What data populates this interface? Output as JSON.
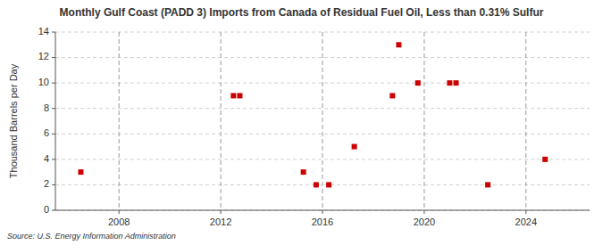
{
  "chart_data": {
    "type": "scatter",
    "title": "Monthly Gulf Coast (PADD 3) Imports from Canada of Residual Fuel Oil, Less than 0.31% Sulfur",
    "ylabel": "Thousand Barrels per Day",
    "source": "Source: U.S. Energy Information Administration",
    "x": [
      2006.5,
      2012.5,
      2012.75,
      2015.25,
      2015.75,
      2016.25,
      2017.25,
      2018.75,
      2019.0,
      2019.75,
      2021.0,
      2021.25,
      2022.5,
      2024.75
    ],
    "values": [
      3,
      9,
      9,
      3,
      2,
      2,
      5,
      9,
      13,
      10,
      10,
      10,
      2,
      4
    ],
    "color": "#cc0000",
    "marker": "square",
    "xlim": [
      2005.5,
      2026.5
    ],
    "ylim": [
      0,
      14
    ],
    "xticks": [
      2008,
      2012,
      2016,
      2020,
      2024
    ],
    "yticks": [
      0,
      2,
      4,
      6,
      8,
      10,
      12,
      14
    ],
    "grid": true
  }
}
